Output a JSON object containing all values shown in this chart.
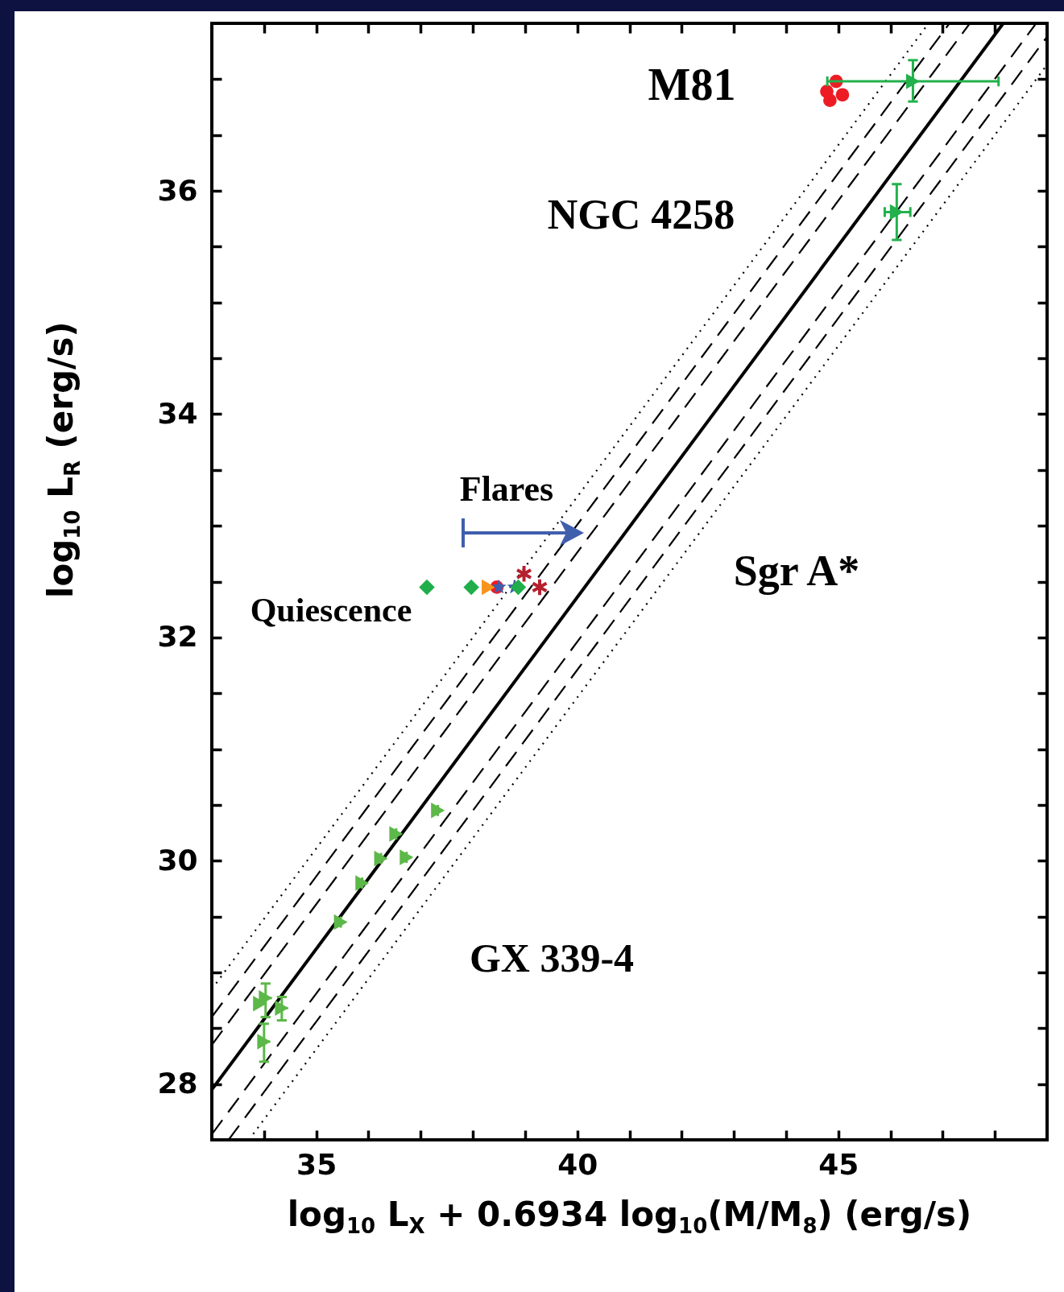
{
  "chart_data": {
    "type": "scatter",
    "xlabel": "log$_{10}$ L$_{X}$ + 0.6934 log$_{10}$(M/M$_{8}$) (erg/s)",
    "ylabel": "log$_{10}$ L$_{R}$ (erg/s)",
    "xlim": [
      33,
      49
    ],
    "ylim": [
      27.5,
      37.5
    ],
    "xticks": [
      {
        "value": 34,
        "label": null
      },
      35,
      {
        "value": 36,
        "label": null
      },
      {
        "value": 37,
        "label": null
      },
      {
        "value": 38,
        "label": null
      },
      {
        "value": 39,
        "label": null
      },
      40,
      {
        "value": 41,
        "label": null
      },
      {
        "value": 42,
        "label": null
      },
      {
        "value": 43,
        "label": null
      },
      {
        "value": 44,
        "label": null
      },
      45,
      {
        "value": 46,
        "label": null
      },
      {
        "value": 47,
        "label": null
      },
      {
        "value": 48,
        "label": null
      }
    ],
    "yticks": [
      28,
      {
        "value": 28.5,
        "label": null
      },
      {
        "value": 29,
        "label": null
      },
      {
        "value": 29.5,
        "label": null
      },
      30,
      {
        "value": 30.5,
        "label": null
      },
      {
        "value": 31,
        "label": null
      },
      {
        "value": 31.5,
        "label": null
      },
      32,
      {
        "value": 32.5,
        "label": null
      },
      {
        "value": 33,
        "label": null
      },
      {
        "value": 33.5,
        "label": null
      },
      34,
      {
        "value": 34.5,
        "label": null
      },
      {
        "value": 35,
        "label": null
      },
      {
        "value": 35.5,
        "label": null
      },
      36,
      {
        "value": 36.5,
        "label": null
      },
      {
        "value": 37,
        "label": null
      }
    ],
    "grid": false,
    "series": [
      {
        "type": "line",
        "line_style": "dotted",
        "color": "#000000",
        "x": [
          33,
          46.73
        ],
        "values": [
          28.85,
          37.5
        ]
      },
      {
        "type": "line",
        "line_style": "dashed",
        "color": "#000000",
        "x": [
          33,
          47.13
        ],
        "values": [
          28.6,
          37.5
        ]
      },
      {
        "type": "line",
        "line_style": "dashed",
        "color": "#000000",
        "x": [
          33,
          47.52
        ],
        "values": [
          28.35,
          37.5
        ]
      },
      {
        "type": "line",
        "line_style": "solid",
        "color": "#000000",
        "x": [
          33,
          48.16
        ],
        "values": [
          27.95,
          37.5
        ]
      },
      {
        "type": "line",
        "line_style": "dashed",
        "color": "#000000",
        "x": [
          33,
          48.79
        ],
        "values": [
          27.55,
          37.5
        ]
      },
      {
        "type": "line",
        "line_style": "dashed",
        "color": "#000000",
        "x": [
          33.32,
          49
        ],
        "values": [
          27.5,
          37.38
        ]
      },
      {
        "type": "line",
        "line_style": "dotted",
        "color": "#000000",
        "x": [
          33.71,
          49
        ],
        "values": [
          27.5,
          37.13
        ]
      },
      {
        "type": "scatter",
        "marker": "circle",
        "color": "#ed1c24",
        "x": [
          44.96,
          44.78,
          45.08,
          44.84
        ],
        "values": [
          36.98,
          36.89,
          36.86,
          36.81
        ]
      },
      {
        "type": "scatter",
        "marker": "triangle",
        "color": "#22b14c",
        "x": [
          46.43,
          46.12
        ],
        "values": [
          36.98,
          35.81
        ],
        "errors": [
          [
            36.8,
            37.17
          ],
          [
            35.56,
            36.06
          ]
        ],
        "xerrors": [
          [
            44.79,
            48.07
          ],
          [
            45.89,
            46.38
          ]
        ]
      },
      {
        "type": "scatter",
        "marker": "triangle",
        "color": "#5cb848",
        "x": [
          37.33,
          36.53,
          36.24,
          36.73,
          35.88,
          35.47,
          34.03,
          33.92,
          34.34,
          34.0
        ],
        "values": [
          30.45,
          30.24,
          30.02,
          30.03,
          29.8,
          29.45,
          28.77,
          28.72,
          28.68,
          28.38
        ],
        "errors": [
          0.05,
          0.05,
          0.05,
          0.05,
          0.05,
          0.05,
          [
            28.6,
            28.9
          ],
          null,
          [
            28.57,
            28.78
          ],
          [
            28.2,
            28.54
          ]
        ],
        "xerrors": [
          0.1,
          0.1,
          0.1,
          0.1,
          0.1,
          0.1,
          0.12,
          null,
          0.12,
          0.12
        ]
      },
      {
        "type": "scatter",
        "marker": "diamond",
        "color": "#1fae4b",
        "x": [
          37.12,
          37.97
        ],
        "values": [
          32.45,
          32.45
        ]
      },
      {
        "type": "scatter",
        "marker": "circle",
        "color": "#ed1c24",
        "x": [
          38.46
        ],
        "values": [
          32.45
        ]
      },
      {
        "type": "scatter",
        "marker": "triangle",
        "color": "#f7941d",
        "x": [
          38.3
        ],
        "values": [
          32.45
        ]
      },
      {
        "type": "scatter",
        "marker": "star",
        "color": "#3f5fad",
        "x": [
          38.5,
          38.8
        ],
        "values": [
          32.45,
          32.45
        ]
      },
      {
        "type": "scatter",
        "marker": "diamond",
        "color": "#1fae4b",
        "x": [
          38.87
        ],
        "values": [
          32.45
        ]
      },
      {
        "type": "scatter",
        "marker": "cross",
        "color": "#b5202e",
        "x": [
          38.98,
          39.28
        ],
        "values": [
          32.57,
          32.45
        ]
      }
    ],
    "annotations": [
      "M81",
      "NGC 4258",
      "Flares",
      "Sgr A*",
      "Quiescence",
      "GX 339-4"
    ]
  }
}
